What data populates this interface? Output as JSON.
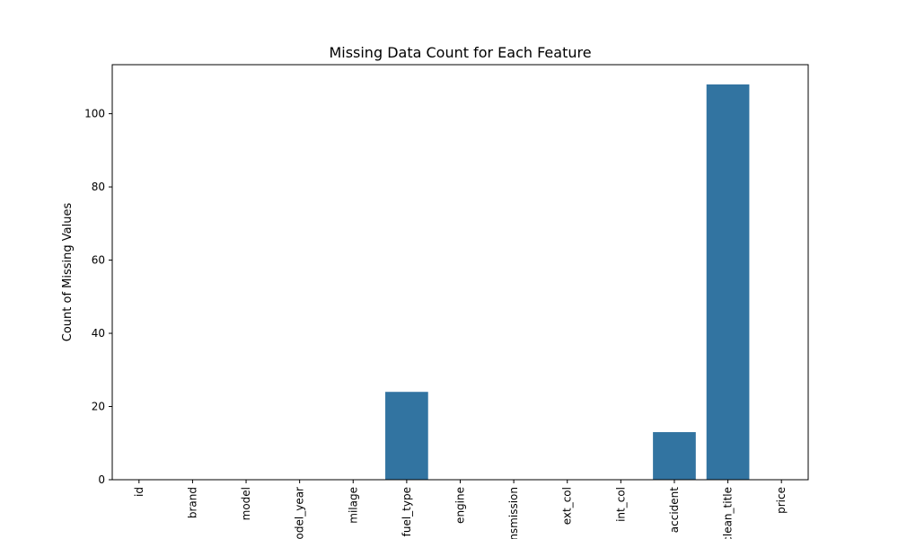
{
  "chart_data": {
    "type": "bar",
    "title": "Missing Data Count for Each Feature",
    "xlabel": "",
    "ylabel": "Count of Missing Values",
    "categories": [
      "id",
      "brand",
      "model",
      "model_year",
      "milage",
      "fuel_type",
      "engine",
      "transmission",
      "ext_col",
      "int_col",
      "accident",
      "clean_title",
      "price"
    ],
    "values": [
      0,
      0,
      0,
      0,
      0,
      24,
      0,
      0,
      0,
      0,
      13,
      108,
      0
    ],
    "ylim": [
      0,
      113.4
    ],
    "yticks": [
      0,
      20,
      40,
      60,
      80,
      100
    ],
    "grid": false,
    "bar_color": "#3274a1"
  }
}
